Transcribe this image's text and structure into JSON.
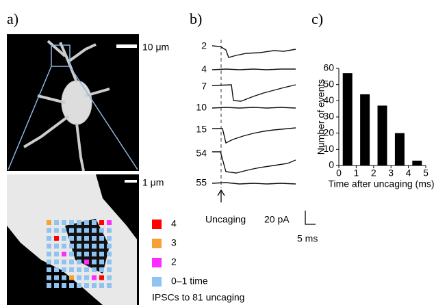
{
  "panels": {
    "a": "a)",
    "b": "b)",
    "c": "c)"
  },
  "panel_a": {
    "scale_top": "10 μm",
    "scale_bottom": "1 μm",
    "legend": [
      {
        "label": "4",
        "color": "#ff0000"
      },
      {
        "label": "3",
        "color": "#f7a035"
      },
      {
        "label": "2",
        "color": "#ff2cff"
      },
      {
        "label": "0–1 time",
        "color": "#8fc3f2"
      }
    ],
    "caption": "IPSCs to 81 uncaging"
  },
  "panel_b": {
    "trace_labels": [
      "2",
      "4",
      "7",
      "10",
      "15",
      "54",
      "55"
    ],
    "stimulus": "Uncaging",
    "scale_current": "20 pA",
    "scale_time": "5 ms"
  },
  "chart_data": {
    "type": "bar",
    "x": [
      0.5,
      1.5,
      2.5,
      3.5,
      4.5
    ],
    "values": [
      57,
      44,
      37,
      20,
      3
    ],
    "color": "#000000",
    "xlim": [
      0,
      5
    ],
    "ylim": [
      0,
      60
    ],
    "xticks": [
      0,
      1,
      2,
      3,
      4,
      5
    ],
    "yticks": [
      0,
      10,
      20,
      30,
      40,
      50,
      60
    ],
    "xlabel": "Time after uncaging (ms)",
    "ylabel": "Number of events"
  }
}
